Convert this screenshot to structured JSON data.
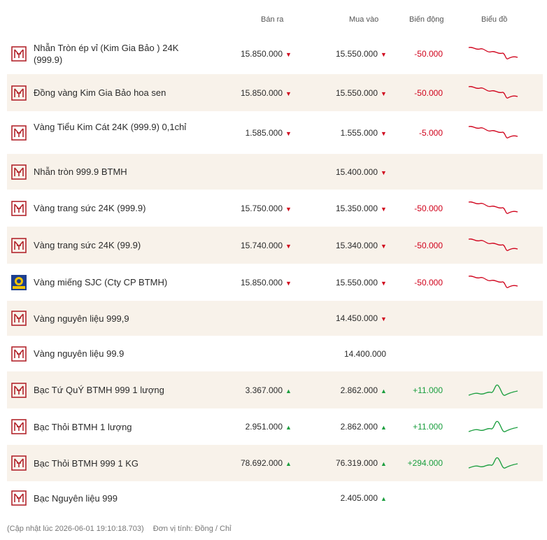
{
  "header": {
    "sell_label": "Bán ra",
    "buy_label": "Mua vào",
    "change_label": "Biến động",
    "chart_label": "Biểu đồ"
  },
  "rows": [
    {
      "name": "Nhẫn Tròn ép vỉ (Kim Gia Bảo ) 24K (999.9)",
      "logo": "btmh-logo-icon",
      "sell": "15.850.000",
      "sell_dir": "down",
      "buy": "15.550.000",
      "buy_dir": "down",
      "change": "-50.000",
      "trend": "down"
    },
    {
      "name": "Đồng vàng Kim Gia Bảo hoa sen",
      "logo": "btmh-logo-icon",
      "sell": "15.850.000",
      "sell_dir": "down",
      "buy": "15.550.000",
      "buy_dir": "down",
      "change": "-50.000",
      "trend": "down"
    },
    {
      "name": "Vàng Tiểu Kim Cát 24K (999.9) 0,1chỉ",
      "logo": "btmh-logo-icon",
      "sell": "1.585.000",
      "sell_dir": "down",
      "buy": "1.555.000",
      "buy_dir": "down",
      "change": "-5.000",
      "trend": "down"
    },
    {
      "name": "Nhẫn tròn 999.9 BTMH",
      "logo": "btmh-logo-icon",
      "sell": "",
      "sell_dir": "",
      "buy": "15.400.000",
      "buy_dir": "down",
      "change": "",
      "trend": ""
    },
    {
      "name": "Vàng trang sức 24K (999.9)",
      "logo": "btmh-logo-icon",
      "sell": "15.750.000",
      "sell_dir": "down",
      "buy": "15.350.000",
      "buy_dir": "down",
      "change": "-50.000",
      "trend": "down"
    },
    {
      "name": "Vàng trang sức 24K (99.9)",
      "logo": "btmh-logo-icon",
      "sell": "15.740.000",
      "sell_dir": "down",
      "buy": "15.340.000",
      "buy_dir": "down",
      "change": "-50.000",
      "trend": "down"
    },
    {
      "name": "Vàng miếng SJC (Cty CP BTMH)",
      "logo": "sjc-logo-icon",
      "sell": "15.850.000",
      "sell_dir": "down",
      "buy": "15.550.000",
      "buy_dir": "down",
      "change": "-50.000",
      "trend": "down"
    },
    {
      "name": "Vàng nguyên liệu 999,9",
      "logo": "btmh-logo-icon",
      "sell": "",
      "sell_dir": "",
      "buy": "14.450.000",
      "buy_dir": "down",
      "change": "",
      "trend": ""
    },
    {
      "name": "Vàng nguyên liệu 99.9",
      "logo": "btmh-logo-icon",
      "sell": "",
      "sell_dir": "",
      "buy": "14.400.000",
      "buy_dir": "",
      "change": "",
      "trend": ""
    },
    {
      "name": "Bạc Tứ QuÝ BTMH 999 1 lượng",
      "logo": "btmh-logo-icon",
      "sell": "3.367.000",
      "sell_dir": "up",
      "buy": "2.862.000",
      "buy_dir": "up",
      "change": "+11.000",
      "trend": "up"
    },
    {
      "name": "Bạc Thỏi BTMH 1 lượng",
      "logo": "btmh-logo-icon",
      "sell": "2.951.000",
      "sell_dir": "up",
      "buy": "2.862.000",
      "buy_dir": "up",
      "change": "+11.000",
      "trend": "up"
    },
    {
      "name": "Bạc Thỏi BTMH 999 1 KG",
      "logo": "btmh-logo-icon",
      "sell": "78.692.000",
      "sell_dir": "up",
      "buy": "76.319.000",
      "buy_dir": "up",
      "change": "+294.000",
      "trend": "up"
    },
    {
      "name": "Bạc Nguyên liệu 999",
      "logo": "btmh-logo-icon",
      "sell": "",
      "sell_dir": "",
      "buy": "2.405.000",
      "buy_dir": "up",
      "change": "",
      "trend": ""
    }
  ],
  "footer": {
    "updated": "(Cập nhật lúc 2026-06-01 19:10:18.703)",
    "unit": "Đơn vị tính: Đồng / Chỉ"
  },
  "colors": {
    "down": "#d0021b",
    "up": "#1a9e3e",
    "logo": "#b3262d",
    "alt_row": "#f8f2ea"
  }
}
